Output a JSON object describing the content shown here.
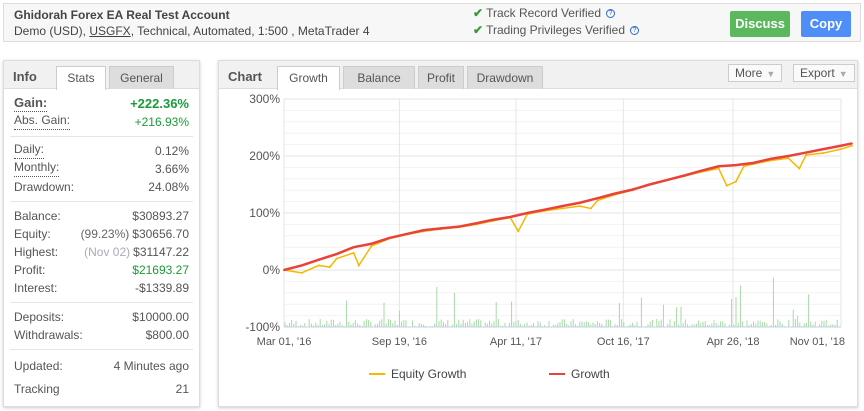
{
  "header": {
    "title": "Ghidorah Forex EA Real Test Account",
    "sub_prefix": "Demo (USD), ",
    "broker": "USGFX",
    "sub_suffix": ", Technical, Automated, 1:500 , MetaTrader 4",
    "verified": [
      {
        "label": "Track Record Verified"
      },
      {
        "label": "Trading Privileges Verified"
      }
    ],
    "discuss": "Discuss",
    "copy": "Copy",
    "colors": {
      "discuss": "#5cb85c",
      "copy": "#4f8ef7"
    }
  },
  "info": {
    "label": "Info",
    "tabs": [
      "Stats",
      "General"
    ],
    "groups": [
      [
        {
          "k": "Gain:",
          "v": "+222.36%",
          "green": true,
          "bold": true,
          "dot": true
        },
        {
          "k": "Abs. Gain:",
          "v": "+216.93%",
          "green": true,
          "dot": true
        }
      ],
      [
        {
          "k": "Daily:",
          "v": "0.12%",
          "dot": true
        },
        {
          "k": "Monthly:",
          "v": "3.66%",
          "dot": true
        },
        {
          "k": "Drawdown:",
          "v": "24.08%"
        }
      ],
      [
        {
          "k": "Balance:",
          "v": "$30893.27"
        },
        {
          "k": "Equity:",
          "pre": "(99.23%)",
          "v": "$30656.70"
        },
        {
          "k": "Highest:",
          "pre": "(Nov 02)",
          "v": "$31147.22"
        },
        {
          "k": "Profit:",
          "v": "$21693.27",
          "green": true
        },
        {
          "k": "Interest:",
          "v": "-$1339.89"
        }
      ],
      [
        {
          "k": "Deposits:",
          "v": "$10000.00"
        },
        {
          "k": "Withdrawals:",
          "v": "$800.00"
        }
      ],
      [
        {
          "k": "Updated:",
          "v": "4 Minutes ago"
        },
        {
          "k": "Tracking",
          "v": "21"
        }
      ]
    ]
  },
  "chart": {
    "label": "Chart",
    "tabs": [
      "Growth",
      "Balance",
      "Profit",
      "Drawdown"
    ],
    "active_tab": "Growth",
    "more": "More",
    "export": "Export"
  },
  "chart_data": {
    "type": "line",
    "ylim": [
      -100,
      300
    ],
    "yticks": [
      "300%",
      "200%",
      "100%",
      "0%",
      "-100%"
    ],
    "ytick_values": [
      300,
      200,
      100,
      0,
      -100
    ],
    "xticks": [
      "Mar 01, '16",
      "Sep 19, '16",
      "Apr 11, '17",
      "Oct 16, '17",
      "Apr 26, '18",
      "Nov 01, '18"
    ],
    "xtick_dates": [
      "2016-03-01",
      "2016-09-19",
      "2017-04-11",
      "2017-10-16",
      "2018-04-26",
      "2018-11-01"
    ],
    "legend": "bottom",
    "grid": true,
    "series": [
      {
        "name": "Equity Growth",
        "color": "#f5b800",
        "x": [
          "2016-03-01",
          "2016-04-01",
          "2016-05-01",
          "2016-05-20",
          "2016-06-01",
          "2016-07-01",
          "2016-07-10",
          "2016-08-01",
          "2016-09-01",
          "2016-10-01",
          "2016-11-01",
          "2016-12-01",
          "2017-01-01",
          "2017-02-01",
          "2017-03-01",
          "2017-04-01",
          "2017-04-15",
          "2017-05-01",
          "2017-06-01",
          "2017-07-01",
          "2017-08-01",
          "2017-08-20",
          "2017-09-01",
          "2017-10-01",
          "2017-11-01",
          "2017-12-01",
          "2018-01-01",
          "2018-02-01",
          "2018-03-01",
          "2018-04-01",
          "2018-04-15",
          "2018-05-01",
          "2018-05-15",
          "2018-06-01",
          "2018-07-01",
          "2018-08-01",
          "2018-08-20",
          "2018-09-01",
          "2018-10-01",
          "2018-11-01",
          "2018-11-20"
        ],
        "values": [
          0,
          -5,
          8,
          5,
          20,
          30,
          8,
          42,
          55,
          62,
          68,
          72,
          75,
          80,
          86,
          92,
          68,
          98,
          104,
          108,
          112,
          108,
          122,
          132,
          140,
          150,
          158,
          165,
          172,
          178,
          148,
          155,
          182,
          186,
          192,
          196,
          178,
          202,
          205,
          212,
          218
        ]
      },
      {
        "name": "Growth",
        "color": "#e8433a",
        "x": [
          "2016-03-01",
          "2016-04-01",
          "2016-05-01",
          "2016-06-01",
          "2016-07-01",
          "2016-08-01",
          "2016-09-01",
          "2016-10-01",
          "2016-11-01",
          "2016-12-01",
          "2017-01-01",
          "2017-02-01",
          "2017-03-01",
          "2017-04-01",
          "2017-05-01",
          "2017-06-01",
          "2017-07-01",
          "2017-08-01",
          "2017-09-01",
          "2017-10-01",
          "2017-11-01",
          "2017-12-01",
          "2018-01-01",
          "2018-02-01",
          "2018-03-01",
          "2018-04-01",
          "2018-05-01",
          "2018-06-01",
          "2018-07-01",
          "2018-08-01",
          "2018-09-01",
          "2018-10-01",
          "2018-11-01",
          "2018-11-20"
        ],
        "values": [
          0,
          8,
          18,
          28,
          40,
          46,
          56,
          63,
          70,
          73,
          76,
          82,
          88,
          93,
          100,
          106,
          112,
          118,
          126,
          134,
          141,
          150,
          158,
          166,
          174,
          182,
          184,
          188,
          195,
          200,
          206,
          212,
          218,
          222
        ]
      }
    ]
  }
}
